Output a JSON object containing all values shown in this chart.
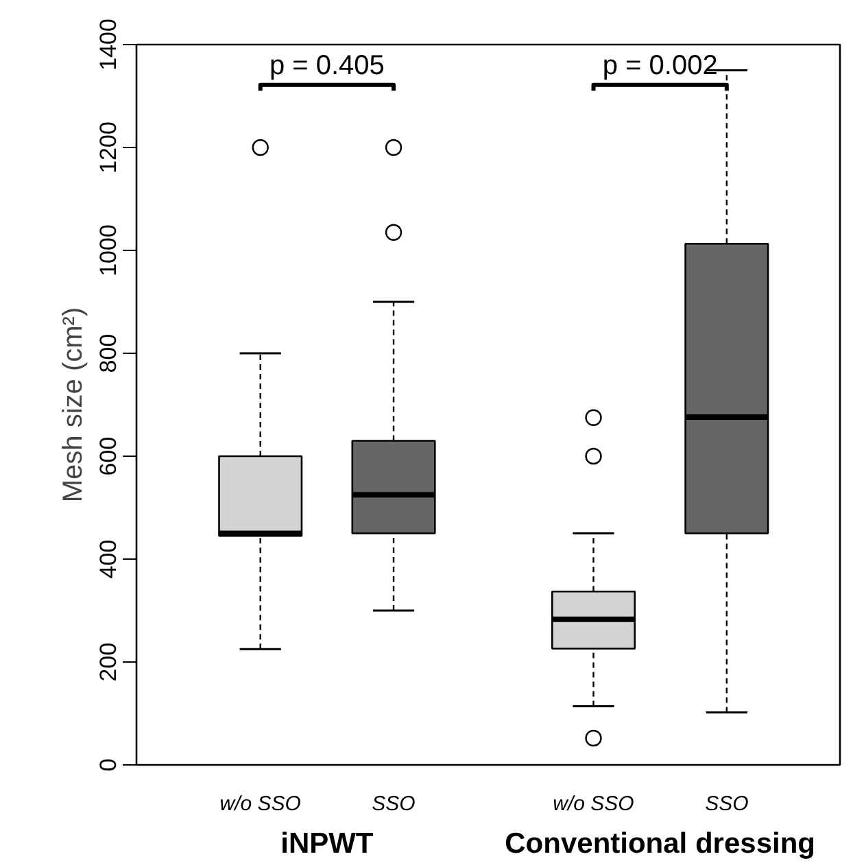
{
  "chart_data": {
    "type": "box",
    "categories": [
      "w/o SSO",
      "SSO",
      "w/o SSO",
      "SSO"
    ],
    "colors": [
      "#d3d3d3",
      "#666666",
      "#d3d3d3",
      "#666666"
    ],
    "boxes": [
      {
        "low": 225,
        "q1": 445,
        "median": 450,
        "q3": 600,
        "high": 800,
        "outliers": [
          1200
        ]
      },
      {
        "low": 300,
        "q1": 450,
        "median": 525,
        "q3": 630,
        "high": 900,
        "outliers": [
          1200,
          1035
        ]
      },
      {
        "low": 114,
        "q1": 226,
        "median": 283,
        "q3": 337,
        "high": 450,
        "outliers": [
          675,
          600,
          52
        ]
      },
      {
        "low": 102,
        "q1": 450,
        "median": 676,
        "q3": 1013,
        "high": 1350
      }
    ],
    "ylabel": "Mesh size (cm²)",
    "ylim": [
      0,
      1400
    ],
    "yticks": [
      0,
      200,
      400,
      600,
      800,
      1000,
      1200,
      1400
    ],
    "annotations": [
      "p = 0.405",
      "p = 0.002",
      "iNPWT",
      "Conventional dressing"
    ]
  }
}
